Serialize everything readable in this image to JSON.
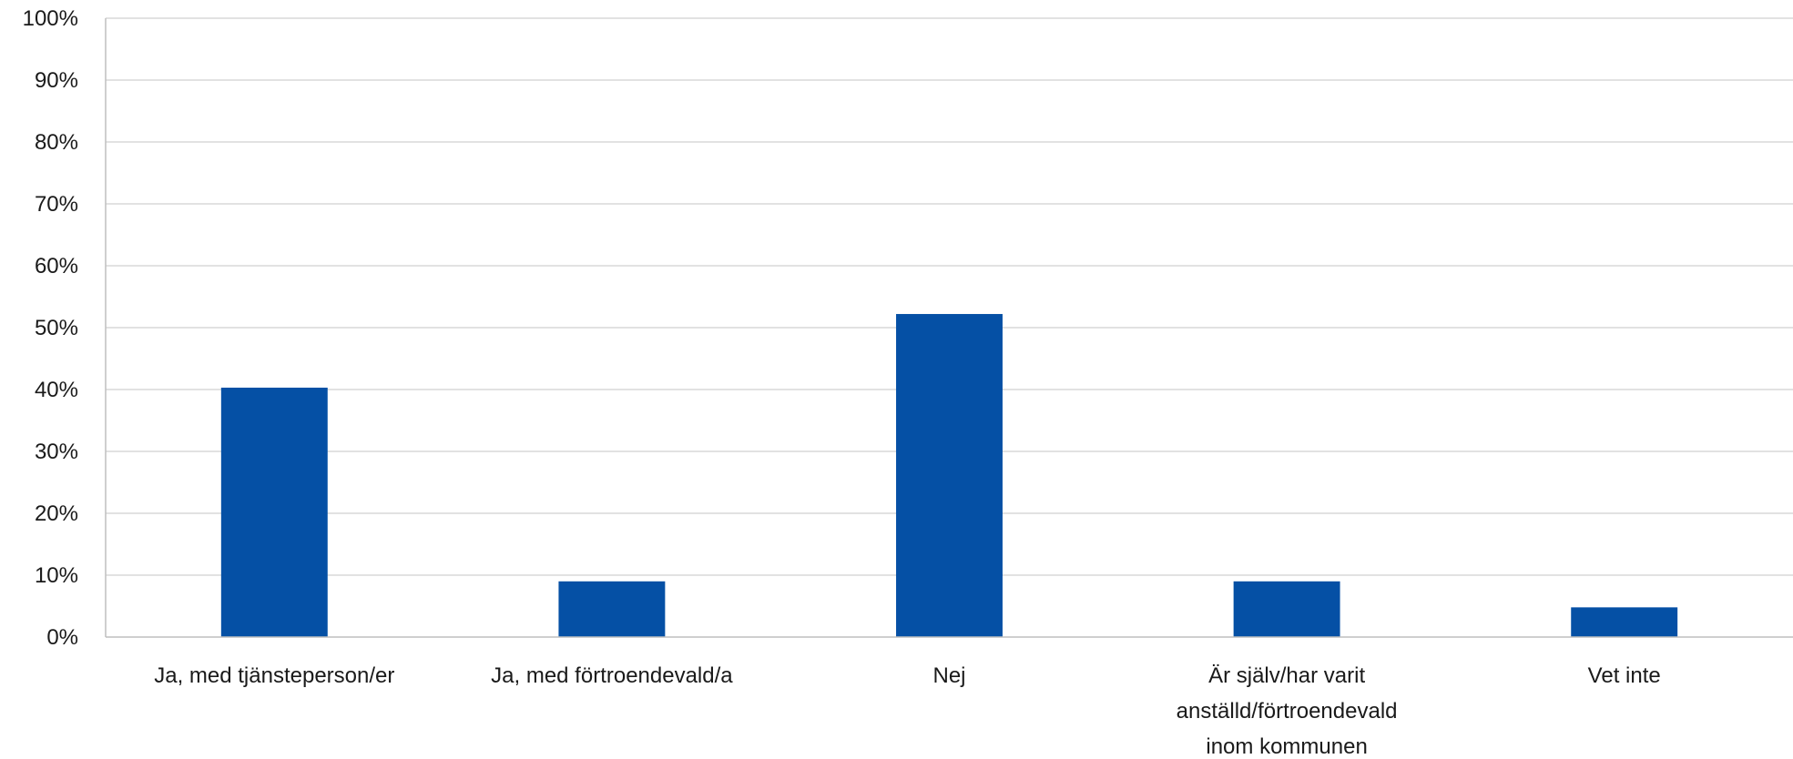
{
  "chart_data": {
    "type": "bar",
    "categories": [
      [
        "Ja, med tjänsteperson/er"
      ],
      [
        "Ja, med förtroendevald/a"
      ],
      [
        "Nej"
      ],
      [
        "Är själv/har varit",
        "anställd/förtroendevald",
        "inom kommunen"
      ],
      [
        "Vet inte"
      ]
    ],
    "values": [
      40.3,
      9.0,
      52.2,
      9.0,
      4.8
    ],
    "ylim": [
      0,
      100
    ],
    "yticks": [
      "0%",
      "10%",
      "20%",
      "30%",
      "40%",
      "50%",
      "60%",
      "70%",
      "80%",
      "90%",
      "100%"
    ],
    "grid": true,
    "bar_color": "#0550a5",
    "title": "",
    "xlabel": "",
    "ylabel": ""
  }
}
